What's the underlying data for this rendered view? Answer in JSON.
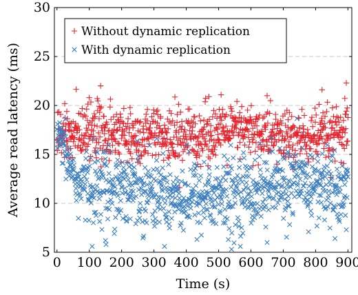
{
  "chart_data": {
    "type": "scatter",
    "title": "",
    "xlabel": "Time (s)",
    "ylabel": "Average read latency (ms)",
    "xlim": [
      -8,
      912
    ],
    "ylim": [
      5,
      30
    ],
    "xticks": [
      0,
      100,
      200,
      300,
      400,
      500,
      600,
      700,
      800,
      900
    ],
    "yticks": [
      5,
      10,
      15,
      20,
      25,
      30
    ],
    "grid": "horizontal dashed",
    "legend_position": "top-left",
    "series": [
      {
        "name": "Without dynamic replication",
        "marker": "plus",
        "color": "#e8202a",
        "sample_interval_s": 1,
        "mean": 17.0,
        "spread": 1.4,
        "notable_points": [
          {
            "x": 135,
            "y": 22.0
          },
          {
            "x": 820,
            "y": 21.6
          },
          {
            "x": 895,
            "y": 22.3
          },
          {
            "x": 100,
            "y": 20.8
          },
          {
            "x": 470,
            "y": 20.9
          },
          {
            "x": 650,
            "y": 21.0
          },
          {
            "x": 250,
            "y": 14.2
          },
          {
            "x": 730,
            "y": 13.5
          }
        ]
      },
      {
        "name": "With dynamic replication",
        "marker": "cross",
        "color": "#3a7ebf",
        "sample_interval_s": 1,
        "mean": 11.3,
        "spread": 1.9,
        "notable_points": [
          {
            "x": 10,
            "y": 17.5
          },
          {
            "x": 20,
            "y": 17.2
          },
          {
            "x": 150,
            "y": 6.2
          },
          {
            "x": 152,
            "y": 5.8
          },
          {
            "x": 540,
            "y": 5.3
          },
          {
            "x": 530,
            "y": 6.3
          },
          {
            "x": 650,
            "y": 6.0
          },
          {
            "x": 860,
            "y": 6.4
          },
          {
            "x": 895,
            "y": 7.3
          },
          {
            "x": 760,
            "y": 14.2
          }
        ]
      }
    ]
  }
}
